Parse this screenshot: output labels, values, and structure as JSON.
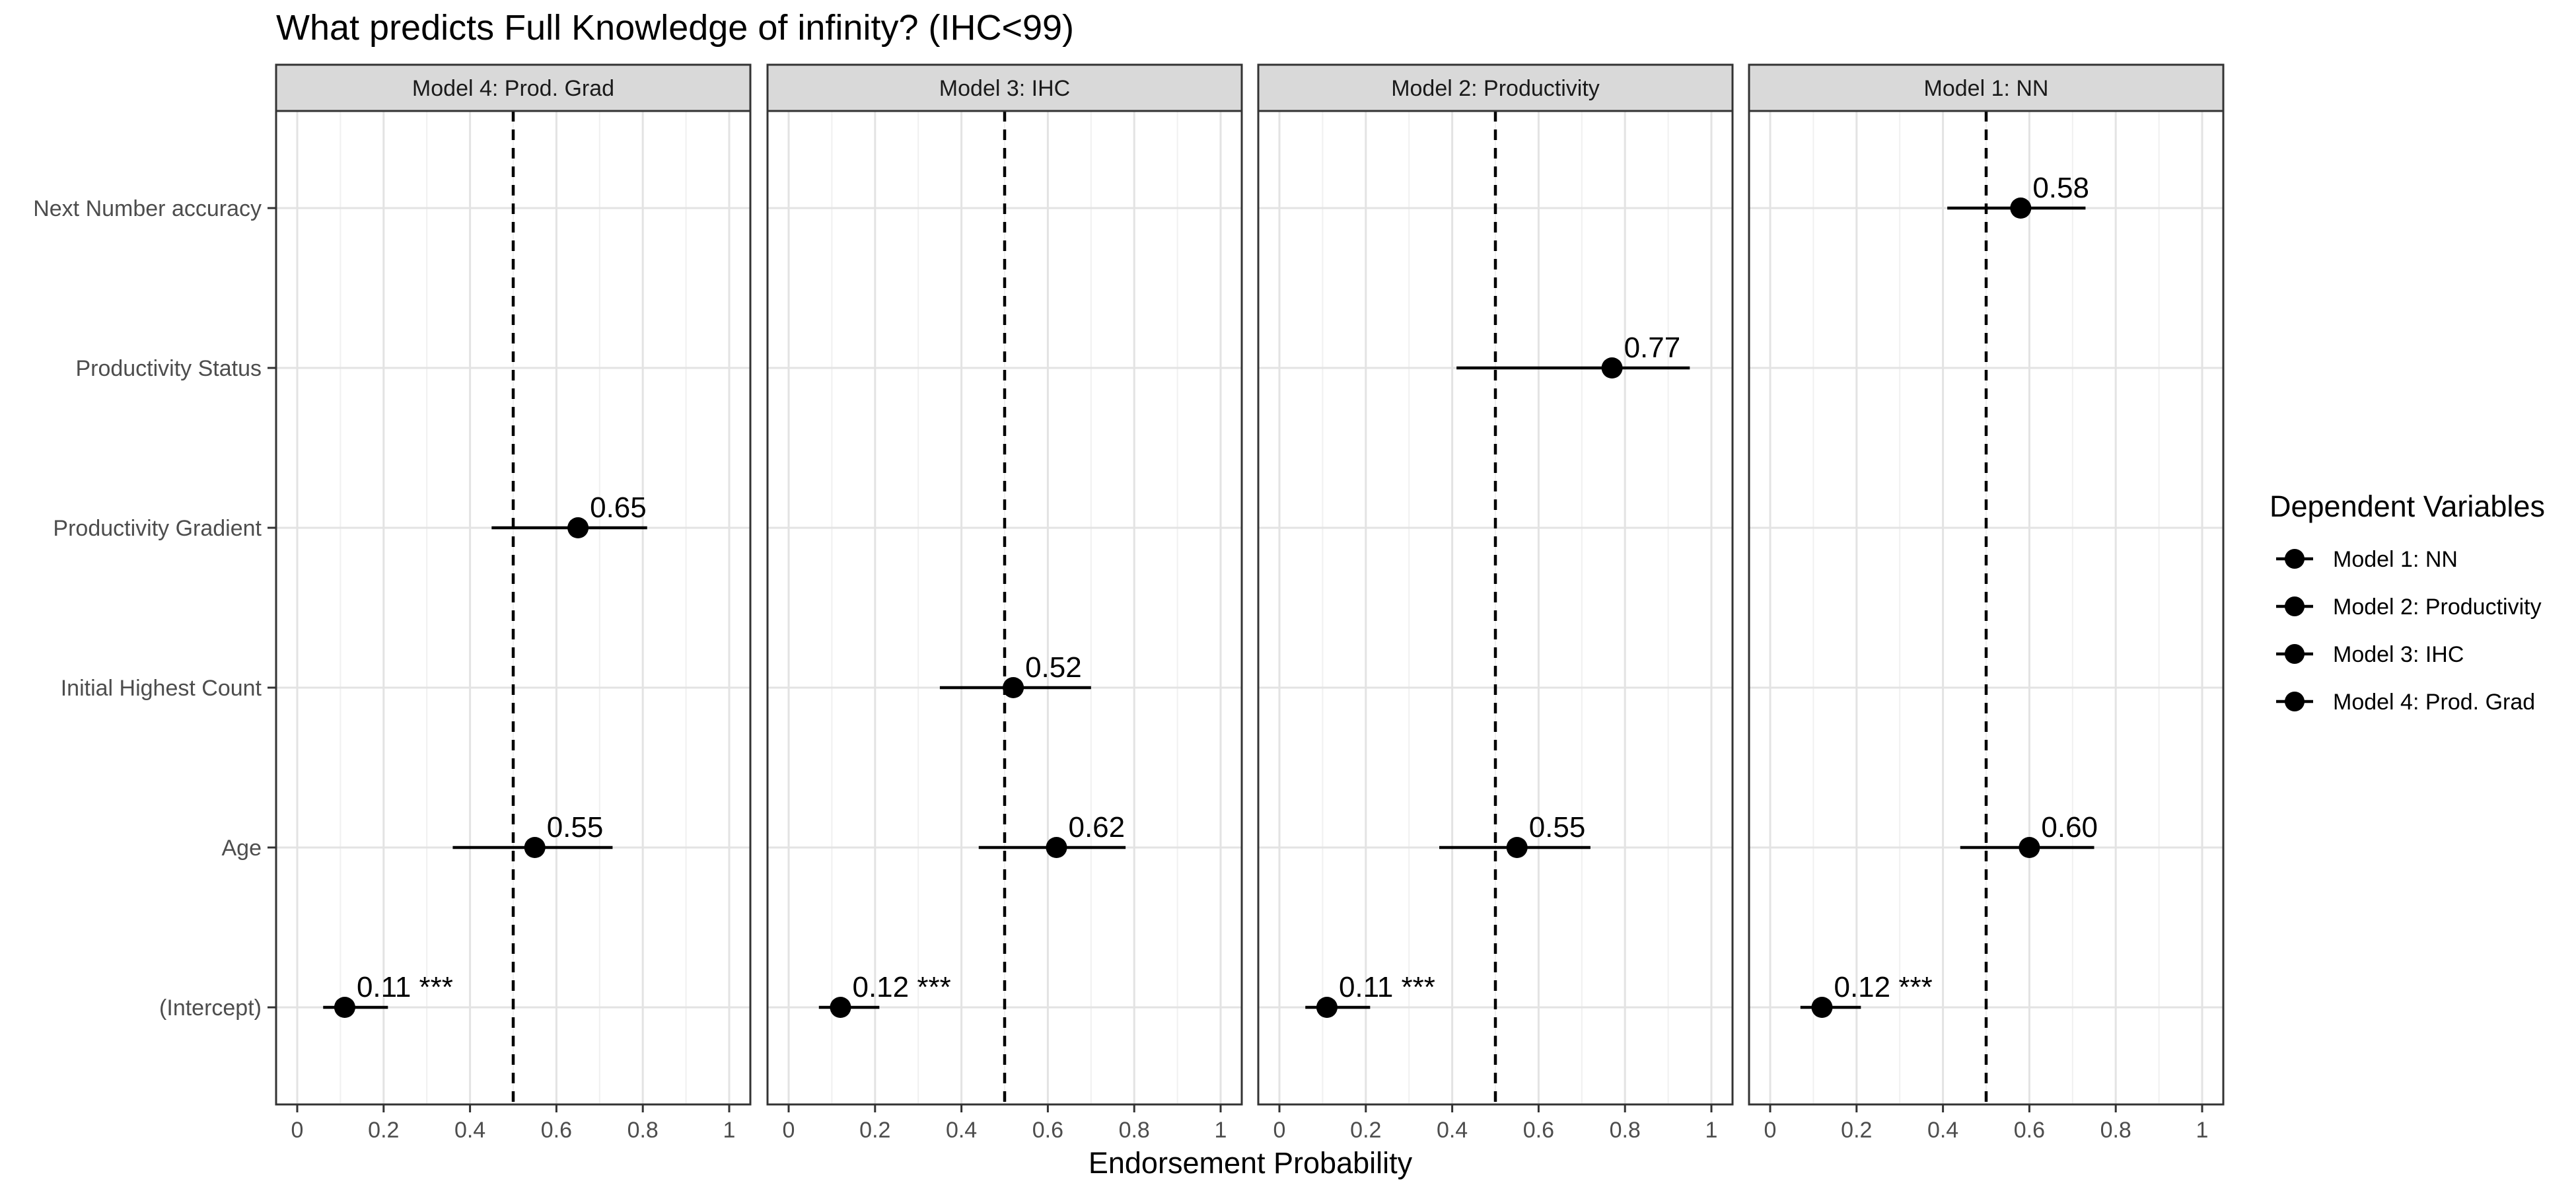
{
  "chart_data": {
    "type": "scatter",
    "title": "What predicts Full Knowledge of infinity? (IHC<99)",
    "xlabel": "Endorsement Probability",
    "xlim": [
      0,
      1
    ],
    "xticks": [
      "0",
      "0.2",
      "0.4",
      "0.6",
      "0.8",
      "1"
    ],
    "reference_line": 0.5,
    "grid": true,
    "legend_position": "right",
    "legend_title": "Dependent Variables",
    "legend_entries": [
      "Model 1: NN",
      "Model 2: Productivity",
      "Model 3: IHC",
      "Model 4: Prod. Grad"
    ],
    "predictors": [
      "Next Number accuracy",
      "Productivity Status",
      "Productivity Gradient",
      "Initial Highest Count",
      "Age",
      "(Intercept)"
    ],
    "panels": [
      {
        "name": "Model 4: Prod. Grad",
        "points": [
          {
            "predictor": "Productivity Gradient",
            "estimate": 0.65,
            "ci": [
              0.45,
              0.81
            ],
            "label": "0.65"
          },
          {
            "predictor": "Age",
            "estimate": 0.55,
            "ci": [
              0.36,
              0.73
            ],
            "label": "0.55"
          },
          {
            "predictor": "(Intercept)",
            "estimate": 0.11,
            "ci": [
              0.06,
              0.21
            ],
            "label": "0.11 ***"
          }
        ]
      },
      {
        "name": "Model 3: IHC",
        "points": [
          {
            "predictor": "Initial Highest Count",
            "estimate": 0.52,
            "ci": [
              0.35,
              0.7
            ],
            "label": "0.52"
          },
          {
            "predictor": "Age",
            "estimate": 0.62,
            "ci": [
              0.44,
              0.78
            ],
            "label": "0.62"
          },
          {
            "predictor": "(Intercept)",
            "estimate": 0.12,
            "ci": [
              0.07,
              0.21
            ],
            "label": "0.12 ***"
          }
        ]
      },
      {
        "name": "Model 2: Productivity",
        "points": [
          {
            "predictor": "Productivity Status",
            "estimate": 0.77,
            "ci": [
              0.41,
              0.95
            ],
            "label": "0.77"
          },
          {
            "predictor": "Age",
            "estimate": 0.55,
            "ci": [
              0.37,
              0.72
            ],
            "label": "0.55"
          },
          {
            "predictor": "(Intercept)",
            "estimate": 0.11,
            "ci": [
              0.06,
              0.21
            ],
            "label": "0.11 ***"
          }
        ]
      },
      {
        "name": "Model 1: NN",
        "points": [
          {
            "predictor": "Next Number accuracy",
            "estimate": 0.58,
            "ci": [
              0.41,
              0.73
            ],
            "label": "0.58"
          },
          {
            "predictor": "Age",
            "estimate": 0.6,
            "ci": [
              0.44,
              0.75
            ],
            "label": "0.60"
          },
          {
            "predictor": "(Intercept)",
            "estimate": 0.12,
            "ci": [
              0.07,
              0.21
            ],
            "label": "0.12 ***"
          }
        ]
      }
    ]
  }
}
